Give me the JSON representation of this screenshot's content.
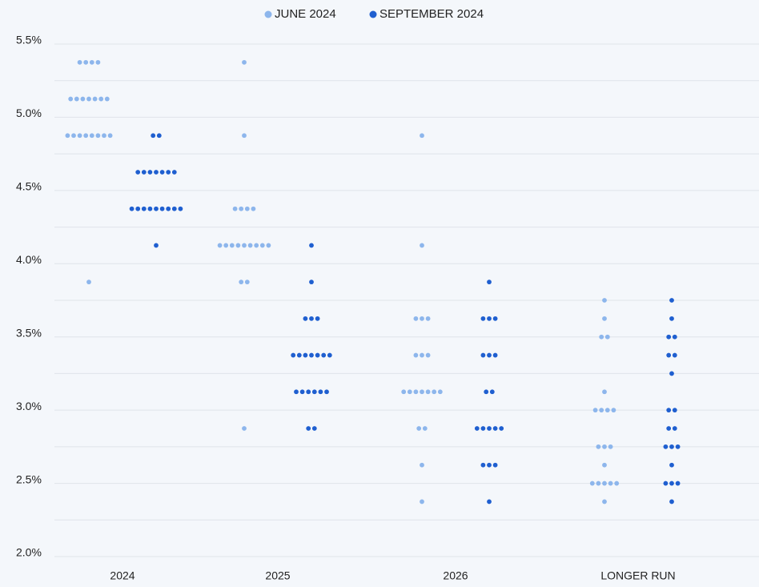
{
  "chart_data": {
    "type": "dot",
    "categories": [
      "2024",
      "2025",
      "2026",
      "LONGER RUN"
    ],
    "ylim": [
      2.0,
      5.5
    ],
    "yticks": [
      {
        "value": 2.0,
        "label": "2.0%"
      },
      {
        "value": 2.5,
        "label": "2.5%"
      },
      {
        "value": 3.0,
        "label": "3.0%"
      },
      {
        "value": 3.5,
        "label": "3.5%"
      },
      {
        "value": 4.0,
        "label": "4.0%"
      },
      {
        "value": 4.5,
        "label": "4.5%"
      },
      {
        "value": 5.0,
        "label": "5.0%"
      },
      {
        "value": 5.5,
        "label": "5.5%"
      }
    ],
    "minor_yticks": [
      2.25,
      2.75,
      3.25,
      3.75,
      4.25,
      4.75,
      5.25
    ],
    "grid": true,
    "legend": "top",
    "series": [
      {
        "name": "JUNE 2024",
        "color": "#8db6ec",
        "values": [
          [
            5.375,
            5.375,
            5.375,
            5.375,
            5.125,
            5.125,
            5.125,
            5.125,
            5.125,
            5.125,
            5.125,
            4.875,
            4.875,
            4.875,
            4.875,
            4.875,
            4.875,
            4.875,
            4.875,
            3.875
          ],
          [
            5.375,
            4.875,
            4.375,
            4.375,
            4.375,
            4.375,
            4.125,
            4.125,
            4.125,
            4.125,
            4.125,
            4.125,
            4.125,
            4.125,
            4.125,
            3.875,
            3.875,
            2.875
          ],
          [
            4.875,
            4.125,
            3.625,
            3.625,
            3.625,
            3.375,
            3.375,
            3.375,
            3.125,
            3.125,
            3.125,
            3.125,
            3.125,
            3.125,
            3.125,
            2.875,
            2.875,
            2.625,
            2.375
          ],
          [
            3.75,
            3.625,
            3.5,
            3.5,
            3.125,
            3.0,
            3.0,
            3.0,
            3.0,
            2.75,
            2.75,
            2.75,
            2.625,
            2.5,
            2.5,
            2.5,
            2.5,
            2.5,
            2.375
          ]
        ]
      },
      {
        "name": "SEPTEMBER 2024",
        "color": "#1f5fd0",
        "values": [
          [
            4.875,
            4.875,
            4.625,
            4.625,
            4.625,
            4.625,
            4.625,
            4.625,
            4.625,
            4.375,
            4.375,
            4.375,
            4.375,
            4.375,
            4.375,
            4.375,
            4.375,
            4.375,
            4.125
          ],
          [
            4.125,
            3.875,
            3.625,
            3.625,
            3.625,
            3.375,
            3.375,
            3.375,
            3.375,
            3.375,
            3.375,
            3.375,
            3.125,
            3.125,
            3.125,
            3.125,
            3.125,
            3.125,
            2.875,
            2.875
          ],
          [
            3.875,
            3.625,
            3.625,
            3.625,
            3.375,
            3.375,
            3.375,
            3.125,
            3.125,
            2.875,
            2.875,
            2.875,
            2.875,
            2.875,
            2.625,
            2.625,
            2.625,
            2.375
          ],
          [
            3.75,
            3.625,
            3.5,
            3.5,
            3.375,
            3.375,
            3.25,
            3.0,
            3.0,
            2.875,
            2.875,
            2.75,
            2.75,
            2.75,
            2.625,
            2.5,
            2.5,
            2.5,
            2.375
          ]
        ]
      }
    ]
  }
}
